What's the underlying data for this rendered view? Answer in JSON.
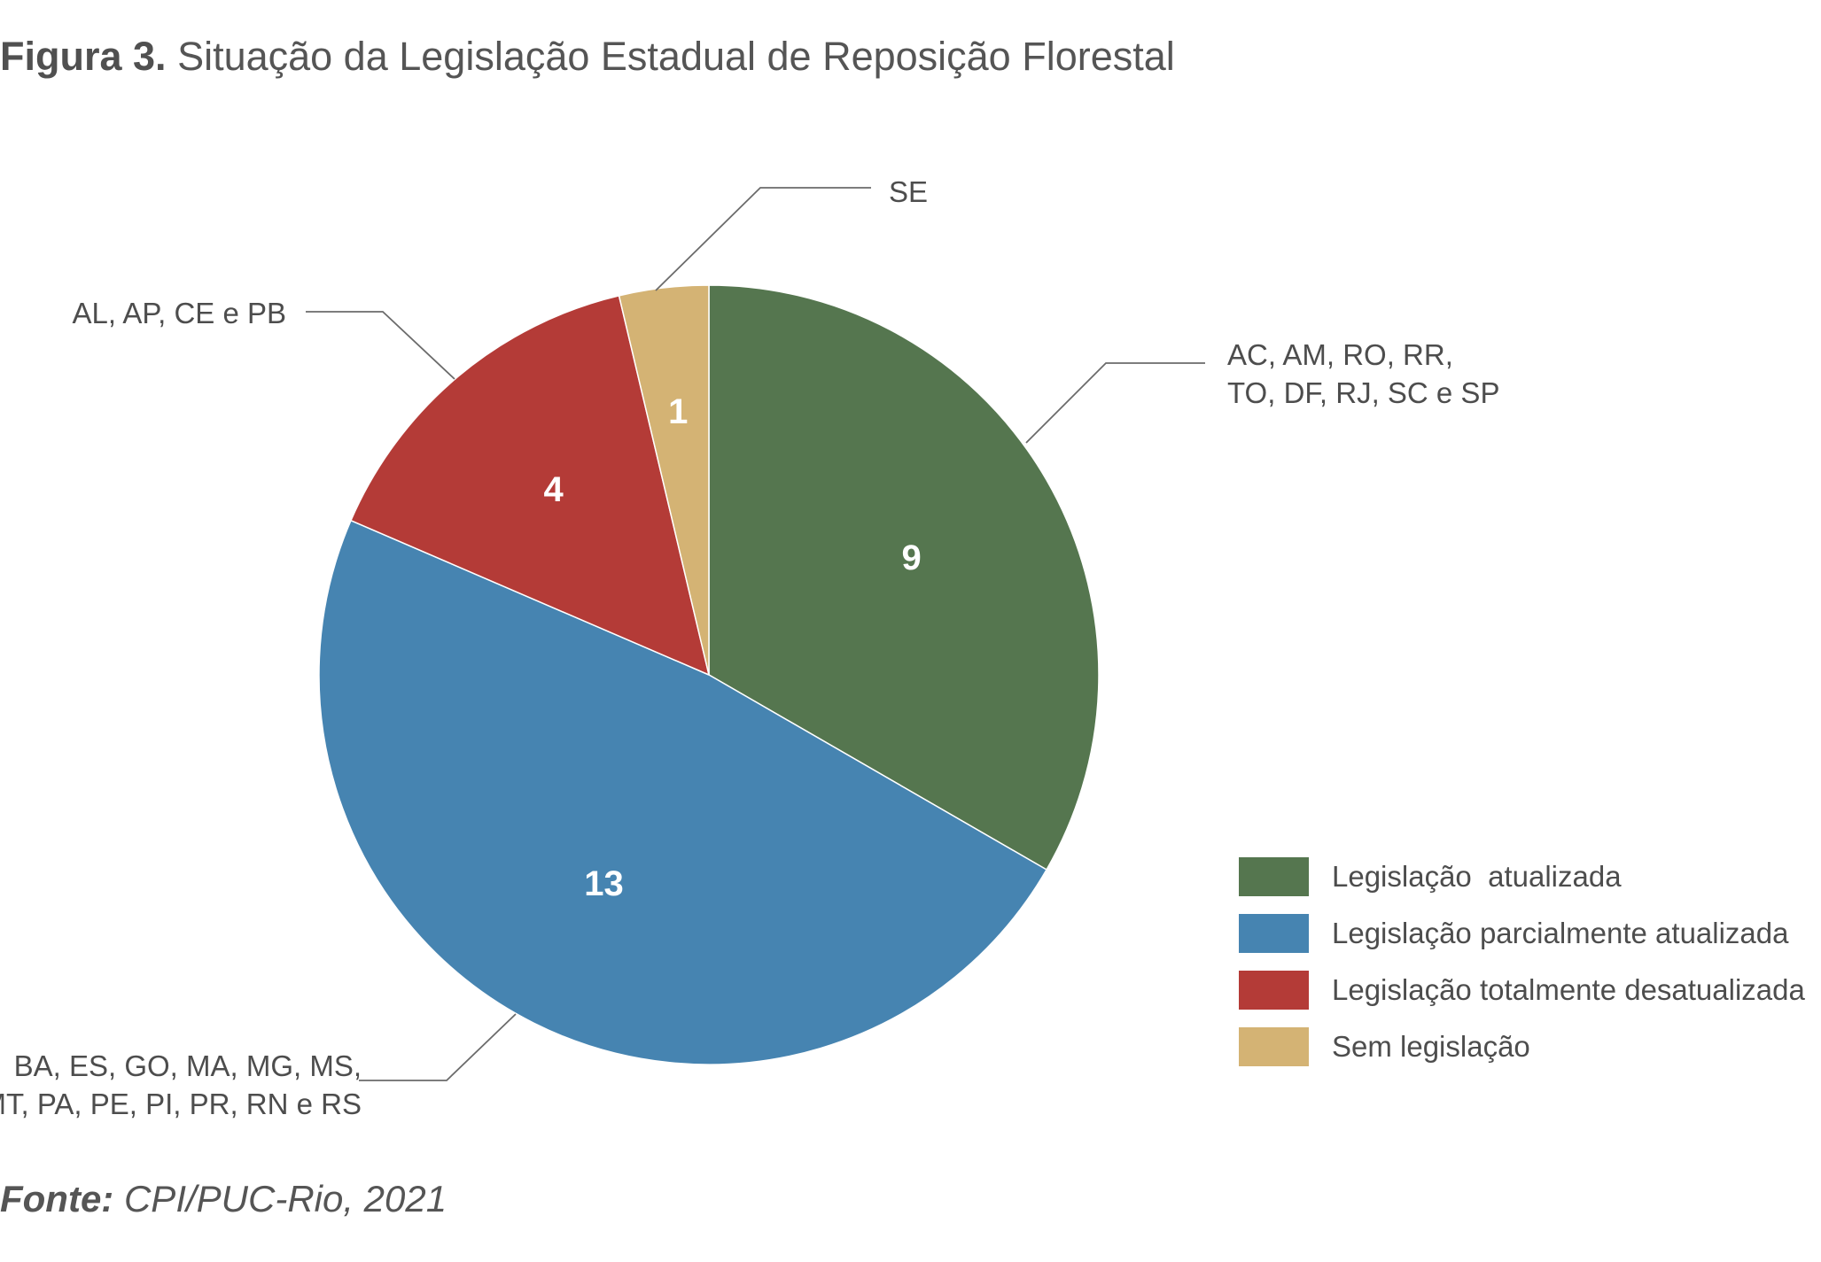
{
  "figure": {
    "title_prefix": "Figura 3.",
    "title_text": "Situação da Legislação Estadual de Reposição Florestal",
    "source_label": "Fonte:",
    "source_text": "CPI/PUC-Rio, 2021"
  },
  "chart_data": {
    "type": "pie",
    "title": "Situação da Legislação Estadual de Reposição Florestal",
    "start": "12 o'clock",
    "direction": "clockwise",
    "legend_placement": "bottom-right",
    "slices": [
      {
        "label": "Legislação  atualizada",
        "value": 9,
        "color": "#55764f",
        "states": [
          "AC, AM, RO, RR,",
          "TO, DF, RJ, SC e SP"
        ]
      },
      {
        "label": "Legislação parcialmente atualizada",
        "value": 13,
        "color": "#4684b1",
        "states": [
          "BA, ES, GO, MA, MG, MS,",
          "MT, PA, PE, PI, PR, RN e RS"
        ]
      },
      {
        "label": "Legislação totalmente desatualizada",
        "value": 4,
        "color": "#b43b37",
        "states": [
          "AL, AP, CE e PB"
        ]
      },
      {
        "label": "Sem legislação",
        "value": 1,
        "color": "#d4b374",
        "states": [
          "SE"
        ]
      }
    ]
  }
}
